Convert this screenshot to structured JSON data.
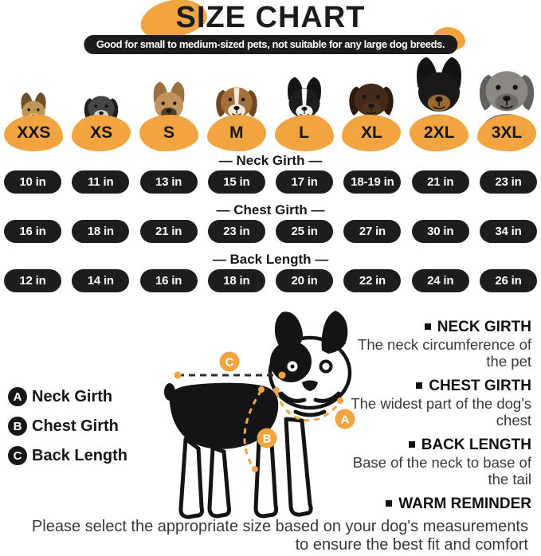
{
  "page": {
    "title": "SIZE CHART",
    "banner": "Good for small to medium-sized pets, not suitable for any large dog breeds."
  },
  "colors": {
    "accent": "#F2A441",
    "dark": "#1C1C1E"
  },
  "sizes": [
    {
      "label": "XXS",
      "breed": "yorkshire-terrier",
      "ears": "up",
      "blaze": false,
      "photo_height": 58,
      "colors": {
        "ear": "#6e512a",
        "head": "#c09552",
        "muzzle": "#e3c794",
        "body": "#7d5c33"
      }
    },
    {
      "label": "XS",
      "breed": "miniature-schnauzer",
      "ears": "down",
      "blaze": false,
      "photo_height": 66,
      "colors": {
        "ear": "#1f1f1f",
        "head": "#454545",
        "muzzle": "#d8d6d2",
        "body": "#333333"
      }
    },
    {
      "label": "S",
      "breed": "french-bulldog",
      "ears": "up",
      "blaze": false,
      "photo_height": 72,
      "colors": {
        "ear": "#9a7140",
        "head": "#c2945c",
        "muzzle": "#4e3b2c",
        "body": "#b88c55"
      }
    },
    {
      "label": "M",
      "breed": "beagle",
      "ears": "down",
      "blaze": true,
      "photo_height": 80,
      "colors": {
        "ear": "#70451d",
        "head": "#a5713a",
        "muzzle": "#f2e9da",
        "body": "#ece3d2"
      }
    },
    {
      "label": "L",
      "breed": "border-collie",
      "ears": "up",
      "blaze": true,
      "photo_height": 78,
      "colors": {
        "ear": "#141414",
        "head": "#1e1e1e",
        "muzzle": "#f6f6f6",
        "body": "#ececec"
      }
    },
    {
      "label": "XL",
      "breed": "chocolate-labrador",
      "ears": "down",
      "blaze": false,
      "photo_height": 86,
      "colors": {
        "ear": "#2e1b10",
        "head": "#45291a",
        "muzzle": "#513322",
        "body": "#3a2315"
      }
    },
    {
      "label": "2XL",
      "breed": "doberman",
      "ears": "up",
      "blaze": false,
      "photo_height": 104,
      "colors": {
        "ear": "#131313",
        "head": "#191919",
        "muzzle": "#9c6a35",
        "body": "#161616"
      }
    },
    {
      "label": "3XL",
      "breed": "great-dane",
      "ears": "down",
      "blaze": false,
      "photo_height": 106,
      "colors": {
        "ear": "#606060",
        "head": "#8b8884",
        "muzzle": "#6f6c68",
        "body": "#7b7874"
      }
    }
  ],
  "measurements": [
    {
      "title": "— Neck Girth —",
      "values": [
        "10 in",
        "11 in",
        "13 in",
        "15 in",
        "17 in",
        "18-19 in",
        "21 in",
        "23 in"
      ]
    },
    {
      "title": "— Chest Girth —",
      "values": [
        "16 in",
        "18 in",
        "21 in",
        "23 in",
        "25 in",
        "27 in",
        "30 in",
        "34 in"
      ]
    },
    {
      "title": "— Back Length —",
      "values": [
        "12 in",
        "14 in",
        "16 in",
        "18 in",
        "20 in",
        "22 in",
        "24 in",
        "26 in"
      ]
    }
  ],
  "legend": [
    {
      "key": "A",
      "label": "Neck Girth"
    },
    {
      "key": "B",
      "label": "Chest Girth"
    },
    {
      "key": "C",
      "label": "Back Length"
    }
  ],
  "definitions": [
    {
      "title": "NECK GIRTH",
      "description": "The neck circumference of the pet"
    },
    {
      "title": "CHEST GIRTH",
      "description": "The widest part of the dog's chest"
    },
    {
      "title": "BACK LENGTH",
      "description": "Base of the neck to base of the tail"
    },
    {
      "title": "WARM REMINDER",
      "description": ""
    }
  ],
  "footer": {
    "note": "Please select the appropriate size based on your dog's measurements to ensure the best fit and comfort"
  }
}
